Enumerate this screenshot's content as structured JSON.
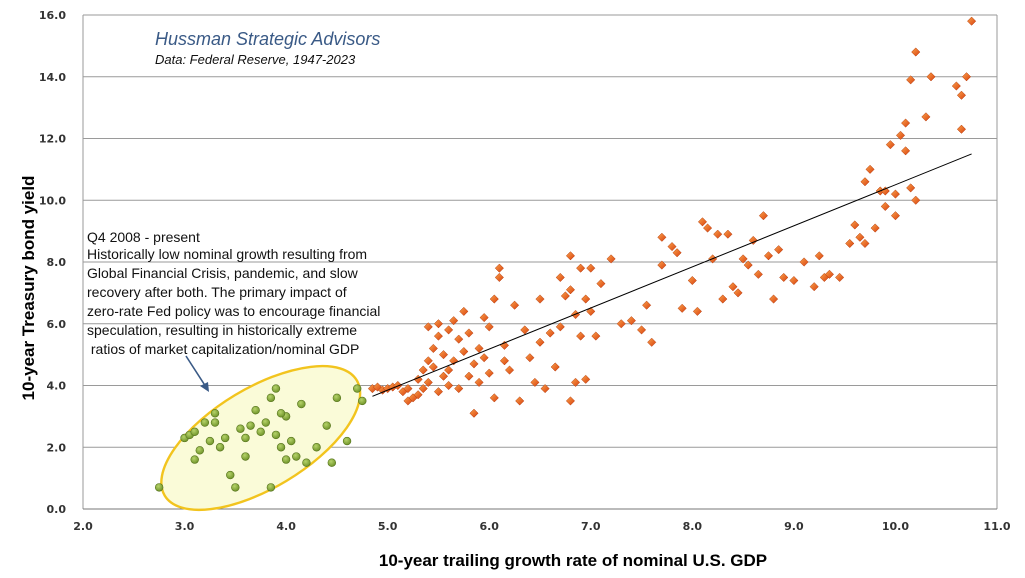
{
  "chart_data": {
    "type": "scatter",
    "title": "Hussman Strategic Advisors",
    "subtitle": "Data: Federal Reserve, 1947-2023",
    "xlabel": "10-year trailing growth rate of nominal U.S. GDP",
    "ylabel": "10-year Treasury bond yield",
    "xlim": [
      2.0,
      11.0
    ],
    "ylim": [
      0.0,
      16.0
    ],
    "xticks": [
      "2.0",
      "3.0",
      "4.0",
      "5.0",
      "6.0",
      "7.0",
      "8.0",
      "9.0",
      "10.0",
      "11.0"
    ],
    "yticks": [
      "0.0",
      "2.0",
      "4.0",
      "6.0",
      "8.0",
      "10.0",
      "12.0",
      "14.0",
      "16.0"
    ],
    "grid": "horizontal",
    "annotation": [
      "Q4 2008 - present",
      "Historically  low nominal growth resulting from",
      "Global Financial Crisis, pandemic, and slow",
      "recovery  after both. The primary impact of",
      "zero-rate Fed policy was to encourage financial",
      "speculation, resulting in historically extreme",
      " ratios of market capitalization/nominal GDP"
    ],
    "trendline": {
      "x": [
        4.85,
        10.75
      ],
      "y": [
        3.65,
        11.5
      ]
    },
    "colors": {
      "historical": "#e8541c",
      "recent": "#7ea033",
      "ellipse_fill": "#fafbd8",
      "ellipse_stroke": "#f2c41e",
      "grid": "#9a9a9a"
    },
    "series": [
      {
        "marker": "diamond",
        "points": [
          [
            4.85,
            3.9
          ],
          [
            4.9,
            3.95
          ],
          [
            4.95,
            3.85
          ],
          [
            5.0,
            3.9
          ],
          [
            5.05,
            3.95
          ],
          [
            5.1,
            4.0
          ],
          [
            5.15,
            3.8
          ],
          [
            5.2,
            3.5
          ],
          [
            5.2,
            3.9
          ],
          [
            5.25,
            3.6
          ],
          [
            5.3,
            4.2
          ],
          [
            5.3,
            3.7
          ],
          [
            5.35,
            4.5
          ],
          [
            5.35,
            3.9
          ],
          [
            5.4,
            4.1
          ],
          [
            5.4,
            4.8
          ],
          [
            5.45,
            5.2
          ],
          [
            5.45,
            4.6
          ],
          [
            5.5,
            5.6
          ],
          [
            5.5,
            3.8
          ],
          [
            5.5,
            6.0
          ],
          [
            5.55,
            4.3
          ],
          [
            5.55,
            5.0
          ],
          [
            5.6,
            5.8
          ],
          [
            5.6,
            4.0
          ],
          [
            5.65,
            6.1
          ],
          [
            5.65,
            4.8
          ],
          [
            5.7,
            5.5
          ],
          [
            5.7,
            3.9
          ],
          [
            5.75,
            6.4
          ],
          [
            5.75,
            5.1
          ],
          [
            5.8,
            4.3
          ],
          [
            5.8,
            5.7
          ],
          [
            5.85,
            4.7
          ],
          [
            5.85,
            3.1
          ],
          [
            5.9,
            5.2
          ],
          [
            5.9,
            4.1
          ],
          [
            5.95,
            6.2
          ],
          [
            5.95,
            4.9
          ],
          [
            6.0,
            4.4
          ],
          [
            6.0,
            5.9
          ],
          [
            6.05,
            3.6
          ],
          [
            6.1,
            7.8
          ],
          [
            6.1,
            7.5
          ],
          [
            6.15,
            4.8
          ],
          [
            6.15,
            5.3
          ],
          [
            6.2,
            4.5
          ],
          [
            6.25,
            6.6
          ],
          [
            6.3,
            3.5
          ],
          [
            6.35,
            5.8
          ],
          [
            6.4,
            4.9
          ],
          [
            6.45,
            4.1
          ],
          [
            6.5,
            5.4
          ],
          [
            6.5,
            6.8
          ],
          [
            6.55,
            3.9
          ],
          [
            6.6,
            5.7
          ],
          [
            6.65,
            4.6
          ],
          [
            6.7,
            7.5
          ],
          [
            6.7,
            5.9
          ],
          [
            6.75,
            6.9
          ],
          [
            6.8,
            8.2
          ],
          [
            6.8,
            7.1
          ],
          [
            6.8,
            3.5
          ],
          [
            6.85,
            6.3
          ],
          [
            6.85,
            4.1
          ],
          [
            6.9,
            7.8
          ],
          [
            6.9,
            5.6
          ],
          [
            6.95,
            6.8
          ],
          [
            6.95,
            4.2
          ],
          [
            7.0,
            7.8
          ],
          [
            7.0,
            6.4
          ],
          [
            7.05,
            5.6
          ],
          [
            7.1,
            7.3
          ],
          [
            7.2,
            8.1
          ],
          [
            7.3,
            6.0
          ],
          [
            7.4,
            6.1
          ],
          [
            7.5,
            5.8
          ],
          [
            7.55,
            6.6
          ],
          [
            7.6,
            5.4
          ],
          [
            7.7,
            8.8
          ],
          [
            7.7,
            7.9
          ],
          [
            7.8,
            8.5
          ],
          [
            7.85,
            8.3
          ],
          [
            7.9,
            6.5
          ],
          [
            8.0,
            7.4
          ],
          [
            8.05,
            6.4
          ],
          [
            8.1,
            9.3
          ],
          [
            8.15,
            9.1
          ],
          [
            8.2,
            8.1
          ],
          [
            8.25,
            8.9
          ],
          [
            8.3,
            6.8
          ],
          [
            8.35,
            8.9
          ],
          [
            8.4,
            7.2
          ],
          [
            8.45,
            7.0
          ],
          [
            8.5,
            8.1
          ],
          [
            8.55,
            7.9
          ],
          [
            8.6,
            8.7
          ],
          [
            8.65,
            7.6
          ],
          [
            8.7,
            9.5
          ],
          [
            8.75,
            8.2
          ],
          [
            8.8,
            6.8
          ],
          [
            8.85,
            8.4
          ],
          [
            8.9,
            7.5
          ],
          [
            9.0,
            7.4
          ],
          [
            9.1,
            8.0
          ],
          [
            9.2,
            7.2
          ],
          [
            9.25,
            8.2
          ],
          [
            9.3,
            7.5
          ],
          [
            9.35,
            7.6
          ],
          [
            9.45,
            7.5
          ],
          [
            9.55,
            8.6
          ],
          [
            9.6,
            9.2
          ],
          [
            9.65,
            8.8
          ],
          [
            9.7,
            10.6
          ],
          [
            9.7,
            8.6
          ],
          [
            9.75,
            11.0
          ],
          [
            9.8,
            9.1
          ],
          [
            9.85,
            10.3
          ],
          [
            9.9,
            9.8
          ],
          [
            9.95,
            11.8
          ],
          [
            10.0,
            9.5
          ],
          [
            10.05,
            12.1
          ],
          [
            10.1,
            12.5
          ],
          [
            10.1,
            11.6
          ],
          [
            10.15,
            10.4
          ],
          [
            10.15,
            13.9
          ],
          [
            10.2,
            14.8
          ],
          [
            10.2,
            10.0
          ],
          [
            10.3,
            12.7
          ],
          [
            10.35,
            14.0
          ],
          [
            10.6,
            13.7
          ],
          [
            10.65,
            12.3
          ],
          [
            10.7,
            14.0
          ],
          [
            10.75,
            15.8
          ],
          [
            10.65,
            13.4
          ],
          [
            10.0,
            10.2
          ],
          [
            9.9,
            10.3
          ],
          [
            5.6,
            4.5
          ],
          [
            5.4,
            5.9
          ],
          [
            6.05,
            6.8
          ]
        ]
      },
      {
        "marker": "circle",
        "points": [
          [
            2.75,
            0.7
          ],
          [
            3.0,
            2.3
          ],
          [
            3.05,
            2.4
          ],
          [
            3.1,
            2.5
          ],
          [
            3.1,
            1.6
          ],
          [
            3.15,
            1.9
          ],
          [
            3.2,
            2.8
          ],
          [
            3.25,
            2.2
          ],
          [
            3.3,
            3.1
          ],
          [
            3.35,
            2.0
          ],
          [
            3.4,
            2.3
          ],
          [
            3.45,
            1.1
          ],
          [
            3.5,
            0.7
          ],
          [
            3.55,
            2.6
          ],
          [
            3.6,
            2.3
          ],
          [
            3.65,
            2.7
          ],
          [
            3.7,
            3.2
          ],
          [
            3.75,
            2.5
          ],
          [
            3.8,
            2.8
          ],
          [
            3.85,
            3.6
          ],
          [
            3.9,
            2.4
          ],
          [
            3.9,
            3.9
          ],
          [
            3.95,
            2.0
          ],
          [
            4.0,
            3.0
          ],
          [
            4.0,
            1.6
          ],
          [
            4.05,
            2.2
          ],
          [
            4.1,
            1.7
          ],
          [
            4.15,
            3.4
          ],
          [
            4.2,
            1.5
          ],
          [
            4.3,
            2.0
          ],
          [
            4.4,
            2.7
          ],
          [
            4.45,
            1.5
          ],
          [
            4.5,
            3.6
          ],
          [
            4.6,
            2.2
          ],
          [
            4.7,
            3.9
          ],
          [
            4.75,
            3.5
          ],
          [
            3.85,
            0.7
          ],
          [
            3.6,
            1.7
          ],
          [
            3.3,
            2.8
          ],
          [
            3.95,
            3.1
          ]
        ]
      }
    ]
  }
}
